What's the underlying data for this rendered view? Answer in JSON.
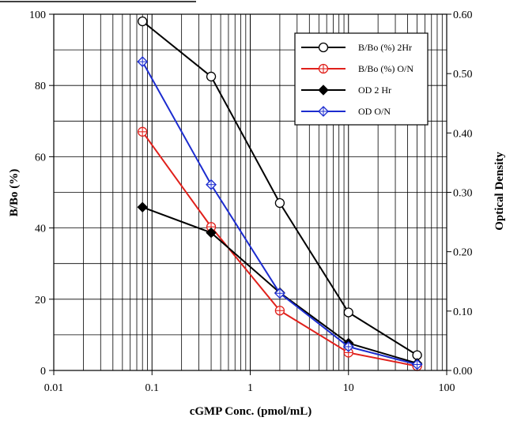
{
  "chart_data": {
    "type": "line",
    "xlabel": "cGMP Conc. (pmol/mL)",
    "ylabel": "B/Bo (%)",
    "y2label": "Optical Density",
    "xscale": "log",
    "xlim": [
      0.01,
      100
    ],
    "ylim": [
      0,
      100
    ],
    "y2lim": [
      0,
      0.6
    ],
    "grid": true,
    "legend_position": "top-right",
    "x_tick_labels": [
      "0.01",
      "0.1",
      "1",
      "10",
      "100"
    ],
    "y_tick_labels": [
      "0",
      "20",
      "40",
      "60",
      "80",
      "100"
    ],
    "y2_tick_labels": [
      "0.00",
      "0.10",
      "0.20",
      "0.30",
      "0.40",
      "0.50",
      "0.60"
    ],
    "x": [
      0.08,
      0.4,
      2,
      10,
      50
    ],
    "series": [
      {
        "name": "B/Bo (%) 2Hr",
        "axis": "left",
        "color": "#000000",
        "marker": "open-circle",
        "values": [
          98,
          82.5,
          47,
          16.3,
          4.3
        ]
      },
      {
        "name": "B/Bo (%) O/N",
        "axis": "left",
        "color": "#e0201b",
        "marker": "circle-plus",
        "values": [
          67,
          40.3,
          16.8,
          5,
          1.2
        ]
      },
      {
        "name": "OD 2 Hr",
        "axis": "right",
        "color": "#000000",
        "marker": "filled-diamond",
        "values": [
          0.275,
          0.232,
          0.131,
          0.046,
          0.012
        ]
      },
      {
        "name": "OD O/N",
        "axis": "right",
        "color": "#1c2ccf",
        "marker": "diamond-plus",
        "values": [
          0.52,
          0.313,
          0.13,
          0.04,
          0.01
        ]
      }
    ]
  }
}
